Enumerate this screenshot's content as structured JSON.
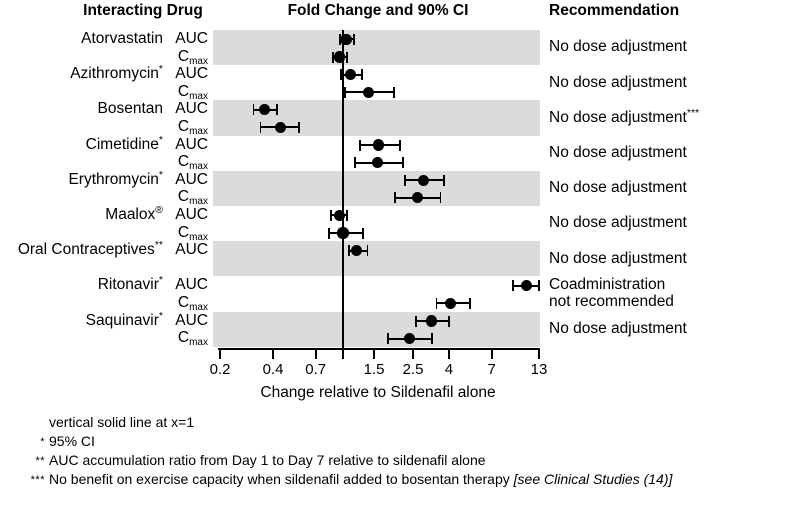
{
  "header": {
    "drug": "Interacting Drug",
    "plot": "Fold Change and 90% CI",
    "rec": "Recommendation"
  },
  "chart_data": {
    "type": "forest",
    "title": "Fold Change and 90% CI",
    "x_axis": {
      "label": "Change relative to Sildenafil alone",
      "scale": "log",
      "range": [
        0.2,
        13
      ],
      "ticks": [
        0.2,
        0.4,
        0.7,
        1,
        1.5,
        2.5,
        4,
        7,
        13
      ],
      "tick_labels": [
        "0.2",
        "0.4",
        "0.7",
        "",
        "1.5",
        "2.5",
        "4",
        "7",
        "13"
      ],
      "reference_line": 1
    },
    "rows": [
      {
        "drug": "Atorvastatin",
        "drug_sup": "",
        "shaded": true,
        "metrics": [
          {
            "param": "AUC",
            "label_base": "AUC",
            "label_sub": "",
            "value": 1.04,
            "lo": 0.96,
            "hi": 1.15
          },
          {
            "param": "Cmax",
            "label_base": "C",
            "label_sub": "max",
            "value": 0.95,
            "lo": 0.88,
            "hi": 1.05
          }
        ],
        "recommendation": {
          "lines": [
            "No dose adjustment"
          ],
          "sup": ""
        }
      },
      {
        "drug": "Azithromycin",
        "drug_sup": "*",
        "shaded": false,
        "metrics": [
          {
            "param": "AUC",
            "label_base": "AUC",
            "label_sub": "",
            "value": 1.1,
            "lo": 0.97,
            "hi": 1.28
          },
          {
            "param": "Cmax",
            "label_base": "C",
            "label_sub": "max",
            "value": 1.4,
            "lo": 1.03,
            "hi": 1.96
          }
        ],
        "recommendation": {
          "lines": [
            "No dose adjustment"
          ],
          "sup": ""
        }
      },
      {
        "drug": "Bosentan",
        "drug_sup": "",
        "shaded": true,
        "metrics": [
          {
            "param": "AUC",
            "label_base": "AUC",
            "label_sub": "",
            "value": 0.36,
            "lo": 0.31,
            "hi": 0.42
          },
          {
            "param": "Cmax",
            "label_base": "C",
            "label_sub": "max",
            "value": 0.44,
            "lo": 0.34,
            "hi": 0.56
          }
        ],
        "recommendation": {
          "lines": [
            "No dose adjustment"
          ],
          "sup": "***"
        }
      },
      {
        "drug": "Cimetidine",
        "drug_sup": "*",
        "shaded": false,
        "metrics": [
          {
            "param": "AUC",
            "label_base": "AUC",
            "label_sub": "",
            "value": 1.6,
            "lo": 1.25,
            "hi": 2.1
          },
          {
            "param": "Cmax",
            "label_base": "C",
            "label_sub": "max",
            "value": 1.58,
            "lo": 1.17,
            "hi": 2.2
          }
        ],
        "recommendation": {
          "lines": [
            "No dose adjustment"
          ],
          "sup": ""
        }
      },
      {
        "drug": "Erythromycin",
        "drug_sup": "*",
        "shaded": true,
        "metrics": [
          {
            "param": "AUC",
            "label_base": "AUC",
            "label_sub": "",
            "value": 2.88,
            "lo": 2.25,
            "hi": 3.75
          },
          {
            "param": "Cmax",
            "label_base": "C",
            "label_sub": "max",
            "value": 2.64,
            "lo": 1.97,
            "hi": 3.58
          }
        ],
        "recommendation": {
          "lines": [
            "No dose adjustment"
          ],
          "sup": ""
        }
      },
      {
        "drug": "Maalox",
        "drug_sup": "®",
        "shaded": false,
        "metrics": [
          {
            "param": "AUC",
            "label_base": "AUC",
            "label_sub": "",
            "value": 0.95,
            "lo": 0.85,
            "hi": 1.05
          },
          {
            "param": "Cmax",
            "label_base": "C",
            "label_sub": "max",
            "value": 1.0,
            "lo": 0.83,
            "hi": 1.3
          }
        ],
        "recommendation": {
          "lines": [
            "No dose adjustment"
          ],
          "sup": ""
        }
      },
      {
        "drug": "Oral Contraceptives",
        "drug_sup": "**",
        "shaded": true,
        "metrics": [
          {
            "param": "AUC",
            "label_base": "AUC",
            "label_sub": "",
            "value": 1.19,
            "lo": 1.08,
            "hi": 1.38
          }
        ],
        "recommendation": {
          "lines": [
            "No dose adjustment"
          ],
          "sup": ""
        }
      },
      {
        "drug": "Ritonavir",
        "drug_sup": "*",
        "shaded": false,
        "metrics": [
          {
            "param": "AUC",
            "label_base": "AUC",
            "label_sub": "",
            "value": 11.0,
            "lo": 9.2,
            "hi": 13.0
          },
          {
            "param": "Cmax",
            "label_base": "C",
            "label_sub": "max",
            "value": 4.1,
            "lo": 3.4,
            "hi": 5.3
          }
        ],
        "recommendation": {
          "lines": [
            "Coadministration",
            "not recommended"
          ],
          "sup": ""
        }
      },
      {
        "drug": "Saquinavir",
        "drug_sup": "*",
        "shaded": true,
        "metrics": [
          {
            "param": "AUC",
            "label_base": "AUC",
            "label_sub": "",
            "value": 3.2,
            "lo": 2.6,
            "hi": 4.0
          },
          {
            "param": "Cmax",
            "label_base": "C",
            "label_sub": "max",
            "value": 2.4,
            "lo": 1.8,
            "hi": 3.2
          }
        ],
        "recommendation": {
          "lines": [
            "No dose adjustment"
          ],
          "sup": ""
        }
      }
    ]
  },
  "footnotes": [
    {
      "marker": "",
      "text": "vertical solid line at x=1",
      "italic_tail": ""
    },
    {
      "marker": "*",
      "text": "95% CI",
      "italic_tail": ""
    },
    {
      "marker": "**",
      "text": "AUC accumulation ratio from Day 1 to Day 7 relative to sildenafil alone",
      "italic_tail": ""
    },
    {
      "marker": "***",
      "text": "No benefit on exercise capacity when sildenafil added to bosentan therapy ",
      "italic_tail": "[see Clinical Studies (14)]"
    }
  ],
  "colors": {
    "band": "#dbdbdb",
    "ink": "#000000",
    "background": "#ffffff"
  }
}
